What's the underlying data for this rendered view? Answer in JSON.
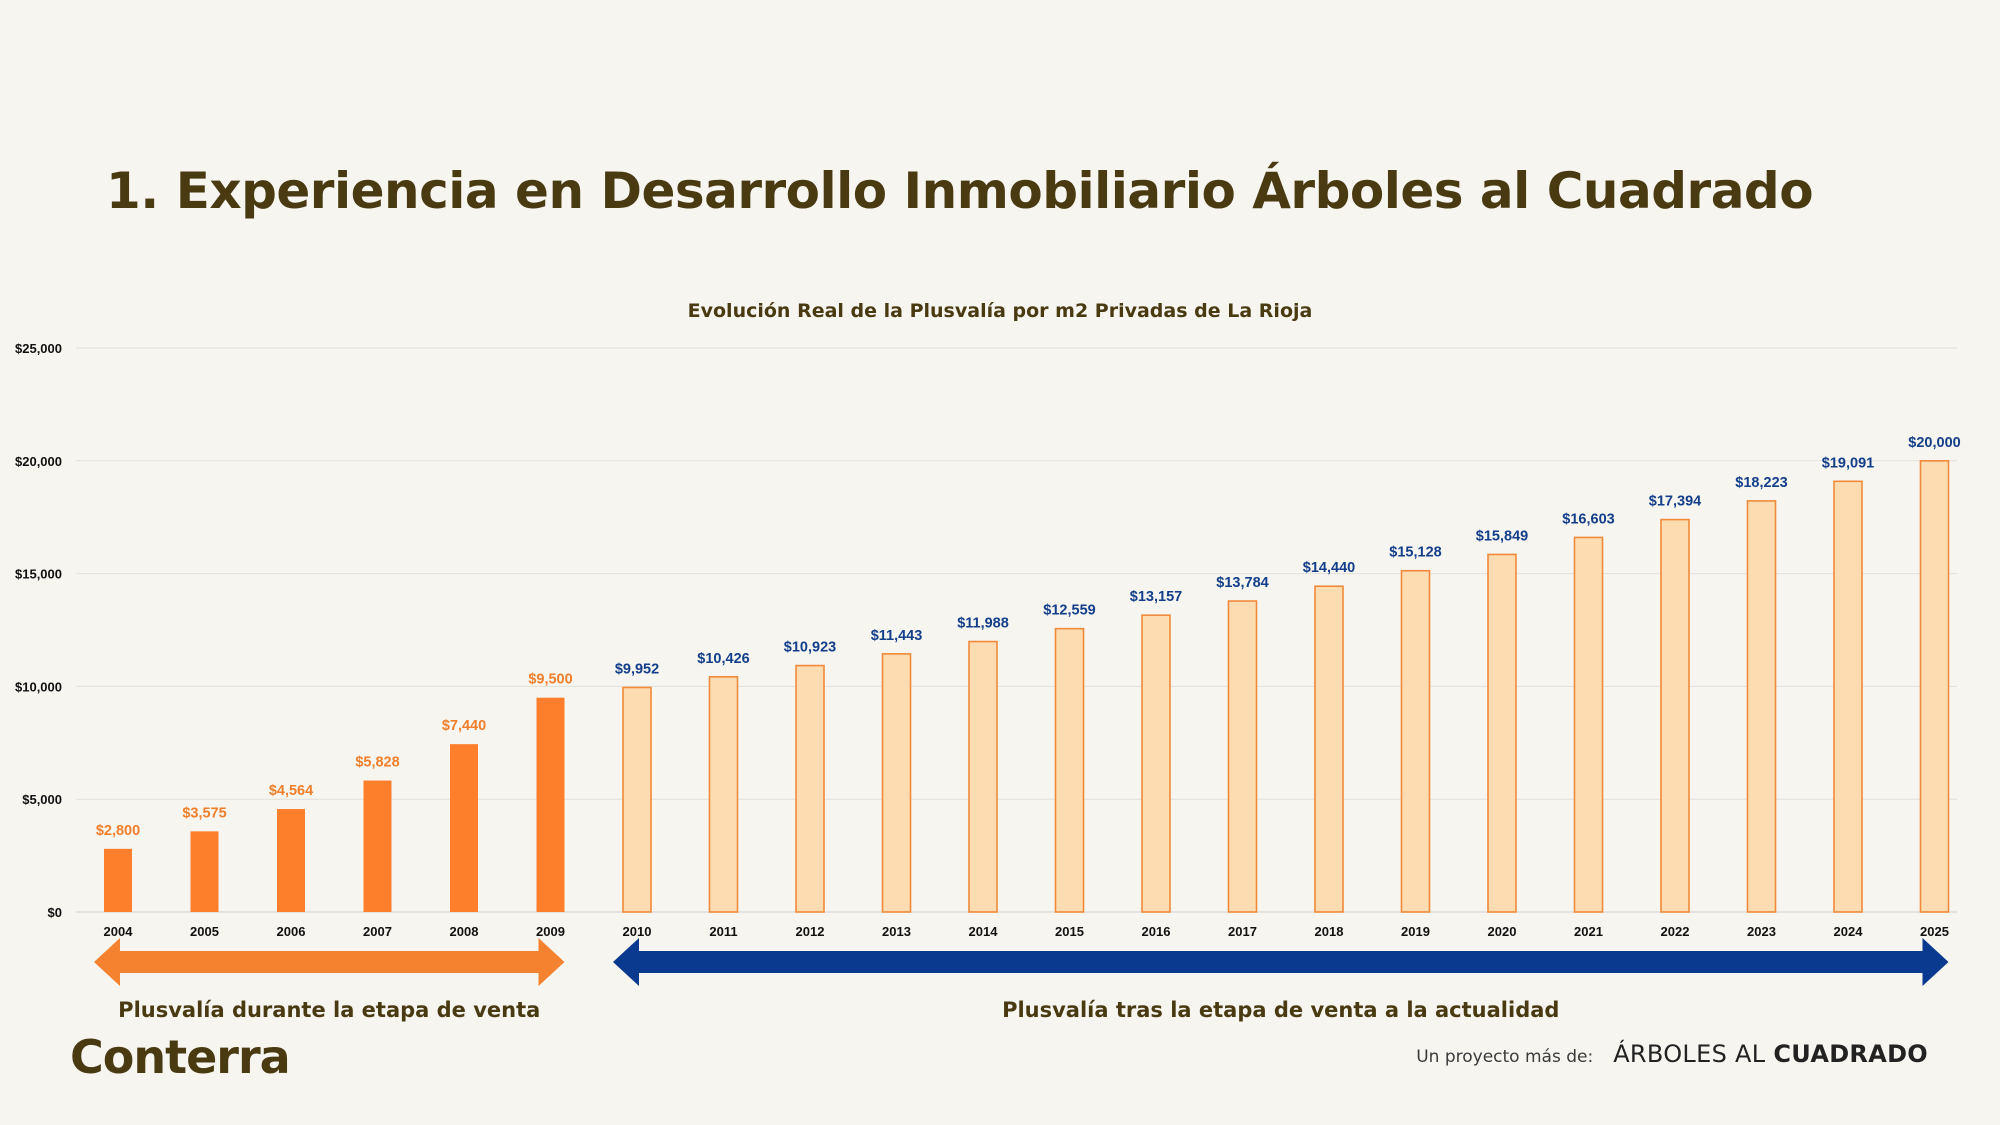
{
  "slide": {
    "title": "1. Experiencia en Desarrollo Inmobiliario Árboles al Cuadrado"
  },
  "chart_data": {
    "type": "bar",
    "title": "Evolución Real de la Plusvalía por m2 Privadas de La Rioja",
    "xlabel": "",
    "ylabel": "",
    "ylim": [
      0,
      25000
    ],
    "yticks": [
      0,
      5000,
      10000,
      15000,
      20000,
      25000
    ],
    "ytick_labels": [
      "$0",
      "$5,000",
      "$10,000",
      "$15,000",
      "$20,000",
      "$25,000"
    ],
    "grid": true,
    "categories": [
      "2004",
      "2005",
      "2006",
      "2007",
      "2008",
      "2009",
      "2010",
      "2011",
      "2012",
      "2013",
      "2014",
      "2015",
      "2016",
      "2017",
      "2018",
      "2019",
      "2020",
      "2021",
      "2022",
      "2023",
      "2024",
      "2025"
    ],
    "values": [
      2800,
      3575,
      4564,
      5828,
      7440,
      9500,
      9952,
      10426,
      10923,
      11443,
      11988,
      12559,
      13157,
      13784,
      14440,
      15128,
      15849,
      16603,
      17394,
      18223,
      19091,
      20000
    ],
    "data_labels": [
      "$2,800",
      "$3,575",
      "$4,564",
      "$5,828",
      "$7,440",
      "$9,500",
      "$9,952",
      "$10,426",
      "$10,923",
      "$11,443",
      "$11,988",
      "$12,559",
      "$13,157",
      "$13,784",
      "$14,440",
      "$15,128",
      "$15,849",
      "$16,603",
      "$17,394",
      "$18,223",
      "$19,091",
      "$20,000"
    ],
    "phases": [
      {
        "label": "Plusvalía durante la etapa de venta",
        "from": "2004",
        "to": "2009",
        "bar_color": "#fd7f2c",
        "label_color": "#f07f2b",
        "arrow_color": "#f5822f"
      },
      {
        "label": "Plusvalía tras la etapa de venta a la actualidad",
        "from": "2010",
        "to": "2025",
        "bar_color": "#fddcb2",
        "bar_stroke": "#f08a3a",
        "label_color": "#133f8a",
        "arrow_color": "#0a3990"
      }
    ]
  },
  "branding": {
    "logo_text": "Conterra",
    "footer_label": "Un proyecto más de:",
    "footer_brand_light": "ÁRBOLES AL",
    "footer_brand_bold": "CUADRADO"
  }
}
